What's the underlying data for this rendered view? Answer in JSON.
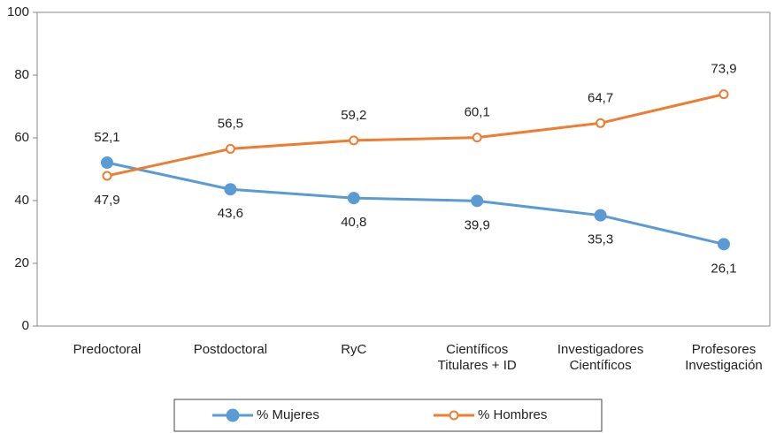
{
  "chart_data": {
    "type": "line",
    "categories": [
      "Predoctoral",
      "Postdoctoral",
      "RyC",
      "Científicos Titulares + ID",
      "Investigadores Científicos",
      "Profesores Investigación"
    ],
    "series": [
      {
        "name": "% Mujeres",
        "color": "#5b9bd5",
        "values": [
          52.1,
          43.6,
          40.8,
          39.9,
          35.3,
          26.1
        ],
        "value_labels": [
          "52,1",
          "43,6",
          "40,8",
          "39,9",
          "35,3",
          "26,1"
        ],
        "marker": "filled"
      },
      {
        "name": "% Hombres",
        "color": "#ed7d31",
        "values": [
          47.9,
          56.5,
          59.2,
          60.1,
          64.7,
          73.9
        ],
        "value_labels": [
          "47,9",
          "56,5",
          "59,2",
          "60,1",
          "64,7",
          "73,9"
        ],
        "marker": "hollow"
      }
    ],
    "ylim": [
      0,
      100
    ],
    "yticks": [
      0,
      20,
      40,
      60,
      80,
      100
    ],
    "grid": false
  }
}
